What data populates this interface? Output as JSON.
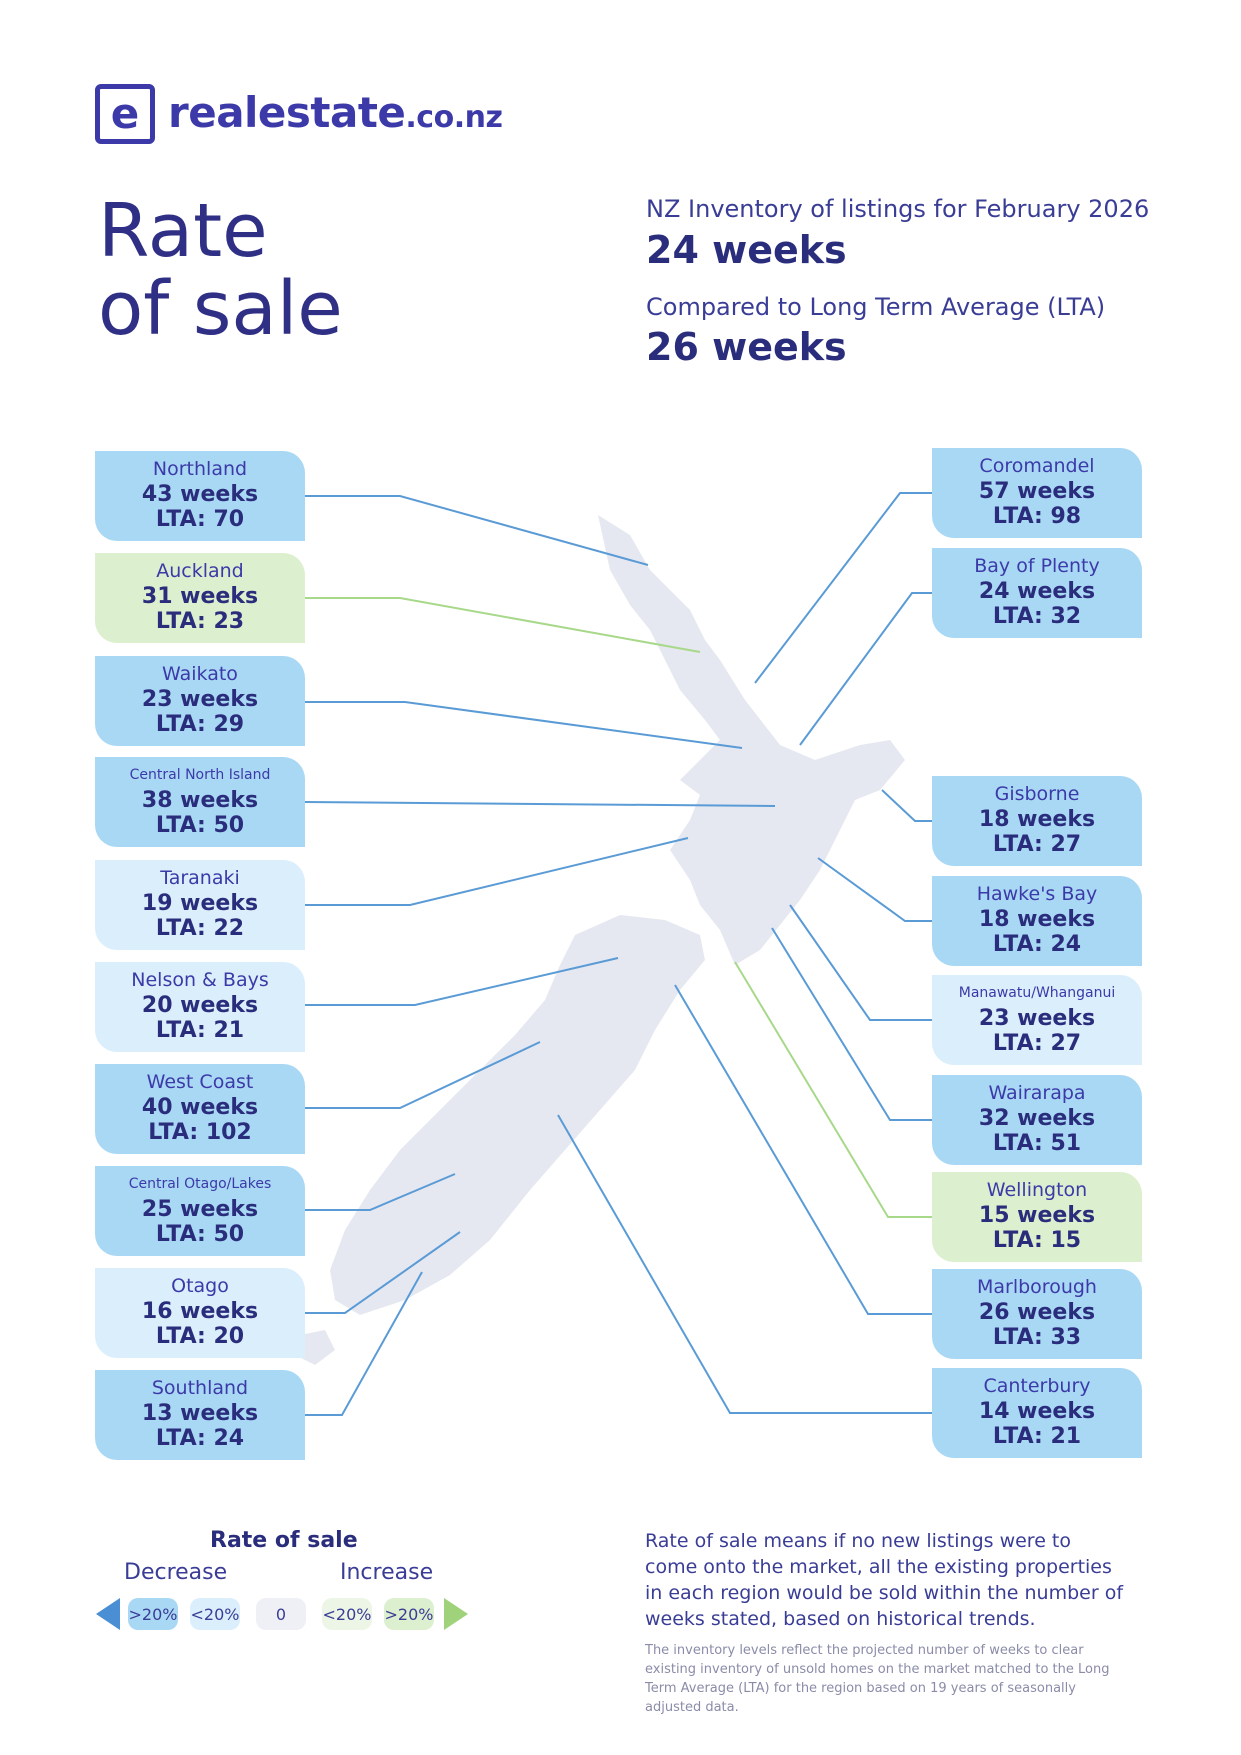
{
  "brand": {
    "mark": "e",
    "name": "realestate",
    "domain": ".co.nz"
  },
  "title": {
    "line1": "Rate",
    "line2": "of sale"
  },
  "national": {
    "inventory_label": "NZ Inventory of listings for February 2026",
    "inventory_value": "24 weeks",
    "lta_label": "Compared to Long Term Average (LTA)",
    "lta_value": "26 weeks"
  },
  "regions_left": [
    {
      "name": "Northland",
      "weeks": "43 weeks",
      "lta": "LTA: 70",
      "level": "dark"
    },
    {
      "name": "Auckland",
      "weeks": "31 weeks",
      "lta": "LTA: 23",
      "level": "green"
    },
    {
      "name": "Waikato",
      "weeks": "23 weeks",
      "lta": "LTA: 29",
      "level": "dark"
    },
    {
      "name": "Central North Island",
      "weeks": "38 weeks",
      "lta": "LTA: 50",
      "level": "dark"
    },
    {
      "name": "Taranaki",
      "weeks": "19 weeks",
      "lta": "LTA: 22",
      "level": "light"
    },
    {
      "name": "Nelson & Bays",
      "weeks": "20 weeks",
      "lta": "LTA: 21",
      "level": "light"
    },
    {
      "name": "West Coast",
      "weeks": "40 weeks",
      "lta": "LTA: 102",
      "level": "dark"
    },
    {
      "name": "Central Otago/Lakes",
      "weeks": "25 weeks",
      "lta": "LTA: 50",
      "level": "dark"
    },
    {
      "name": "Otago",
      "weeks": "16 weeks",
      "lta": "LTA: 20",
      "level": "light"
    },
    {
      "name": "Southland",
      "weeks": "13 weeks",
      "lta": "LTA: 24",
      "level": "dark"
    }
  ],
  "regions_right": [
    {
      "name": "Coromandel",
      "weeks": "57 weeks",
      "lta": "LTA: 98",
      "level": "dark"
    },
    {
      "name": "Bay of Plenty",
      "weeks": "24 weeks",
      "lta": "LTA: 32",
      "level": "dark"
    },
    {
      "name": "Gisborne",
      "weeks": "18 weeks",
      "lta": "LTA: 27",
      "level": "dark"
    },
    {
      "name": "Hawke's Bay",
      "weeks": "18 weeks",
      "lta": "LTA: 24",
      "level": "dark"
    },
    {
      "name": "Manawatu/Whanganui",
      "weeks": "23 weeks",
      "lta": "LTA: 27",
      "level": "light"
    },
    {
      "name": "Wairarapa",
      "weeks": "32 weeks",
      "lta": "LTA: 51",
      "level": "dark"
    },
    {
      "name": "Wellington",
      "weeks": "15 weeks",
      "lta": "LTA: 15",
      "level": "green"
    },
    {
      "name": "Marlborough",
      "weeks": "26 weeks",
      "lta": "LTA: 33",
      "level": "dark"
    },
    {
      "name": "Canterbury",
      "weeks": "14 weeks",
      "lta": "LTA: 21",
      "level": "dark"
    }
  ],
  "legend": {
    "title": "Rate of sale",
    "decrease": "Decrease",
    "increase": "Increase",
    "chips": [
      ">20%",
      "<20%",
      "0",
      "<20%",
      ">20%"
    ]
  },
  "description": "Rate of sale means if no new listings were to come onto the market, all the existing properties in each region would be sold within the number of weeks stated, based on historical trends.",
  "footnote": "The inventory levels reflect the projected number of weeks to clear existing inventory of unsold homes on the market matched to the Long Term Average (LTA) for the region based on 19 years of seasonally adjusted data.",
  "colors": {
    "primary": "#2a2d7c",
    "brand": "#3c3aa8",
    "dark_blue_box": "#a9d8f5",
    "light_blue_box": "#dbeefb",
    "green_box": "#dcefce",
    "line_blue": "#5a9bd6",
    "line_green": "#a8d88a",
    "map_fill": "#e6e8f1"
  }
}
